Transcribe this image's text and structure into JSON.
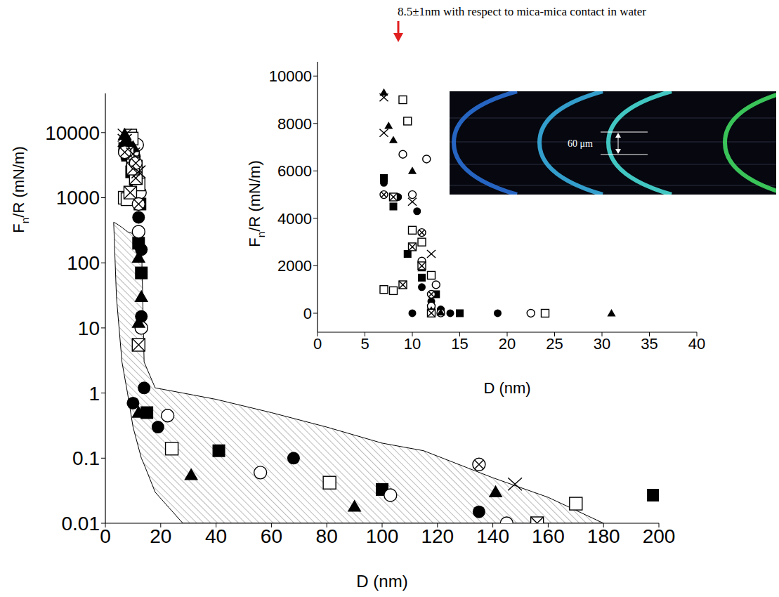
{
  "annotation": "8.5±1nm with respect to mica-mica contact in water",
  "image_label": "60 μm",
  "chart_data": [
    {
      "type": "scatter",
      "x_label": "D (nm)",
      "y_label": "Fn/R (mN/m)",
      "log": "y",
      "grid": false,
      "xlim": [
        0,
        200
      ],
      "xticks": [
        0,
        20,
        40,
        60,
        80,
        100,
        120,
        140,
        160,
        180,
        200
      ],
      "ylim": [
        0.01,
        40000
      ],
      "yticks": [
        0.01,
        0.1,
        1,
        10,
        100,
        1000,
        10000
      ],
      "shaded_region": {
        "x": [
          3,
          4,
          6,
          8,
          10,
          13,
          14,
          18,
          28,
          40,
          60,
          80,
          100,
          115,
          140,
          160,
          180
        ],
        "lower": [
          420,
          30,
          3,
          1.0,
          0.3,
          0.1,
          0.08,
          0.03,
          0.01,
          0.01,
          0.01,
          0.01,
          0.01,
          0.01,
          0.01,
          0.01,
          0.01
        ],
        "upper": [
          420,
          400,
          350,
          300,
          280,
          250,
          3,
          1.2,
          1.0,
          0.8,
          0.5,
          0.3,
          0.17,
          0.13,
          0.05,
          0.025,
          0.01
        ]
      },
      "series": [
        {
          "marker": "filled_square",
          "color": "#000000",
          "x": [
            198,
            100,
            41,
            15,
            13,
            12,
            12.5,
            11,
            9.5,
            8,
            7
          ],
          "values": [
            0.027,
            0.033,
            0.13,
            0.5,
            70,
            200,
            800,
            1500,
            2500,
            4500,
            5700
          ]
        },
        {
          "marker": "filled_circle",
          "color": "#000000",
          "x": [
            135,
            68,
            19,
            14,
            10,
            13,
            13,
            12,
            11,
            10.5,
            8.5,
            7
          ],
          "values": [
            0.015,
            0.1,
            0.3,
            1.2,
            0.7,
            15,
            160,
            500,
            1100,
            4300,
            4900,
            5500
          ]
        },
        {
          "marker": "open_circle",
          "color": "#000000",
          "x": [
            145,
            103,
            56,
            22.5,
            13,
            12,
            12.5,
            11,
            10,
            9,
            11.5
          ],
          "values": [
            0.01,
            0.027,
            0.06,
            0.45,
            10,
            300,
            1200,
            2200,
            5000,
            6700,
            6500
          ]
        },
        {
          "marker": "open_square",
          "color": "#000000",
          "x": [
            170,
            81,
            24,
            12,
            7,
            8,
            10,
            11,
            9,
            9.5
          ],
          "values": [
            0.02,
            0.042,
            0.14,
            1600,
            1000,
            950,
            3500,
            3000,
            9000,
            8100
          ]
        },
        {
          "marker": "filled_triangle",
          "color": "#000000",
          "x": [
            141,
            90,
            31,
            12,
            12,
            13,
            12,
            11,
            10,
            8,
            7.5,
            7
          ],
          "values": [
            0.03,
            0.018,
            0.055,
            0.5,
            12,
            30,
            120,
            1900,
            6000,
            7300,
            7900,
            9300
          ]
        },
        {
          "marker": "crossed_square",
          "color": "#000000",
          "x": [
            156,
            12,
            11,
            9,
            8,
            10
          ],
          "values": [
            0.01,
            5.5,
            2000,
            1200,
            4900,
            2800
          ]
        },
        {
          "marker": "crossed_circle",
          "color": "#000000",
          "x": [
            135,
            12,
            11,
            7
          ],
          "values": [
            0.08,
            800,
            3400,
            5000
          ]
        },
        {
          "marker": "x",
          "color": "#000000",
          "x": [
            148,
            12,
            10,
            7,
            7
          ],
          "values": [
            0.04,
            2500,
            4700,
            7600,
            9100
          ]
        }
      ]
    },
    {
      "type": "scatter",
      "x_label": "D (nm)",
      "y_label": "Fn/R (mN/m)",
      "grid": false,
      "xlim": [
        0,
        40
      ],
      "xticks": [
        0,
        5,
        10,
        15,
        20,
        25,
        30,
        35,
        40
      ],
      "ylim": [
        -800,
        10600
      ],
      "yticks": [
        0,
        2000,
        4000,
        6000,
        8000,
        10000
      ],
      "series": [
        {
          "marker": "filled_square",
          "color": "#000000",
          "x": [
            15,
            13,
            12,
            12.5,
            11,
            9.5,
            8,
            7
          ],
          "values": [
            0.5,
            70,
            200,
            800,
            1500,
            2500,
            4500,
            5700
          ]
        },
        {
          "marker": "filled_circle",
          "color": "#000000",
          "x": [
            19,
            14,
            10,
            13,
            13,
            12,
            11,
            10.5,
            8.5,
            7
          ],
          "values": [
            0.3,
            1.2,
            0.7,
            15,
            160,
            500,
            1100,
            4300,
            4900,
            5500
          ]
        },
        {
          "marker": "open_circle",
          "color": "#000000",
          "x": [
            22.5,
            13,
            12,
            12.5,
            11,
            10,
            9,
            11.5
          ],
          "values": [
            0.45,
            10,
            300,
            1200,
            2200,
            5000,
            6700,
            6500
          ]
        },
        {
          "marker": "open_square",
          "color": "#000000",
          "x": [
            24,
            12,
            7,
            8,
            10,
            11,
            9,
            9.5
          ],
          "values": [
            0.14,
            1600,
            1000,
            950,
            3500,
            3000,
            9000,
            8100
          ]
        },
        {
          "marker": "filled_triangle",
          "color": "#000000",
          "x": [
            31,
            12,
            12,
            13,
            12,
            11,
            10,
            8,
            7.5,
            7
          ],
          "values": [
            0.055,
            0.5,
            12,
            30,
            120,
            1900,
            6000,
            7300,
            7900,
            9300
          ]
        },
        {
          "marker": "crossed_square",
          "color": "#000000",
          "x": [
            12,
            11,
            9,
            8,
            10
          ],
          "values": [
            5.5,
            2000,
            1200,
            4900,
            2800
          ]
        },
        {
          "marker": "crossed_circle",
          "color": "#000000",
          "x": [
            12,
            11,
            7
          ],
          "values": [
            800,
            3400,
            5000
          ]
        },
        {
          "marker": "x",
          "color": "#000000",
          "x": [
            12,
            10,
            7,
            7
          ],
          "values": [
            2500,
            4700,
            7600,
            9100
          ]
        }
      ]
    }
  ]
}
